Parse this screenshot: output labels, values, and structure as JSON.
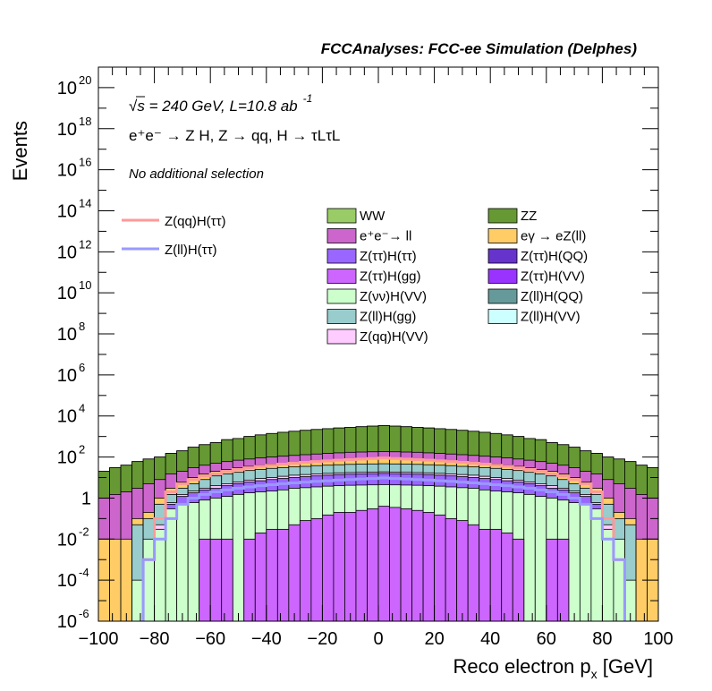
{
  "chart_data": {
    "type": "bar",
    "title": "FCCAnalyses: FCC-ee Simulation (Delphes)",
    "annotations": {
      "energy_sqrt": "s",
      "energy_rest": " = 240 GeV, L=10.8 ab",
      "energy_exp": "-1",
      "process": "e⁺e⁻ → Z H, Z → qq, H → τLτL",
      "selection": "No additional selection"
    },
    "xlabel": "Reco electron p",
    "xlabel_sub": "x",
    "xlabel_unit": " [GeV]",
    "ylabel": "Events",
    "xlim": [
      -100,
      100
    ],
    "ylim": [
      1e-06,
      1e+21
    ],
    "ylog": true,
    "xticks": [
      -100,
      -80,
      -60,
      -40,
      -20,
      0,
      20,
      40,
      60,
      80,
      100
    ],
    "yticks": [
      {
        "label": "10",
        "exp": "-6",
        "value": 1e-06
      },
      {
        "label": "10",
        "exp": "-4",
        "value": 0.0001
      },
      {
        "label": "10",
        "exp": "-2",
        "value": 0.01
      },
      {
        "label": "1",
        "exp": "",
        "value": 1
      },
      {
        "label": "10",
        "exp": "2",
        "value": 100.0
      },
      {
        "label": "10",
        "exp": "4",
        "value": 10000.0
      },
      {
        "label": "10",
        "exp": "6",
        "value": 1000000.0
      },
      {
        "label": "10",
        "exp": "8",
        "value": 100000000.0
      },
      {
        "label": "10",
        "exp": "10",
        "value": 10000000000.0
      },
      {
        "label": "10",
        "exp": "12",
        "value": 1000000000000.0
      },
      {
        "label": "10",
        "exp": "14",
        "value": 100000000000000.0
      },
      {
        "label": "10",
        "exp": "16",
        "value": 1e+16
      },
      {
        "label": "10",
        "exp": "18",
        "value": 1e+18
      },
      {
        "label": "10",
        "exp": "20",
        "value": 1e+20
      }
    ],
    "grid": false,
    "legend_position": "top-right",
    "signal_legend": [
      {
        "name": "Z(qq)H(ττ)",
        "color": "#ff9999"
      },
      {
        "name": "Z(ll)H(ττ)",
        "color": "#9999ff"
      }
    ],
    "stack_legend": [
      {
        "name": "WW",
        "color": "#99cc66"
      },
      {
        "name": "ZZ",
        "color": "#669933"
      },
      {
        "name": "e⁺e⁻→ ll",
        "color": "#cc66cc"
      },
      {
        "name": "eγ → eZ(ll)",
        "color": "#ffcc66"
      },
      {
        "name": "Z(ττ)H(ττ)",
        "color": "#9966ff"
      },
      {
        "name": "Z(ττ)H(QQ)",
        "color": "#6633cc"
      },
      {
        "name": "Z(ττ)H(gg)",
        "color": "#cc66ff"
      },
      {
        "name": "Z(ττ)H(VV)",
        "color": "#9933ff"
      },
      {
        "name": "Z(νν)H(VV)",
        "color": "#ccffcc"
      },
      {
        "name": "Z(ll)H(QQ)",
        "color": "#669999"
      },
      {
        "name": "Z(ll)H(gg)",
        "color": "#99cccc"
      },
      {
        "name": "Z(ll)H(VV)",
        "color": "#ccffff"
      },
      {
        "name": "Z(qq)H(VV)",
        "color": "#ffccff"
      }
    ],
    "bin_edges": [
      -100,
      -96,
      -92,
      -88,
      -84,
      -80,
      -76,
      -72,
      -68,
      -64,
      -60,
      -56,
      -52,
      -48,
      -44,
      -40,
      -36,
      -32,
      -28,
      -24,
      -20,
      -16,
      -12,
      -8,
      -4,
      0,
      4,
      8,
      12,
      16,
      20,
      24,
      28,
      32,
      36,
      40,
      44,
      48,
      52,
      56,
      60,
      64,
      68,
      72,
      76,
      80,
      84,
      88,
      92,
      96,
      100
    ],
    "stack_levels": {
      "order": [
        "Z(ττ)H(gg)",
        "Z(νν)H(VV)",
        "Z(ττ)H(ττ)",
        "Z(qq)H(VV)",
        "Z(ll)H(gg)",
        "eγ → eZ(ll)",
        "e⁺e⁻→ ll",
        "ZZ",
        "WW"
      ],
      "cumulative": [
        {
          "name": "Z(ττ)H(gg)",
          "values": [
            null,
            null,
            null,
            null,
            null,
            null,
            null,
            null,
            null,
            0.01,
            0.01,
            0.01,
            null,
            0.01,
            0.02,
            0.03,
            0.03,
            0.05,
            0.08,
            0.1,
            0.15,
            0.2,
            0.2,
            0.25,
            0.3,
            0.4,
            0.35,
            0.3,
            0.25,
            0.2,
            0.15,
            0.1,
            0.08,
            0.05,
            0.03,
            0.03,
            0.02,
            0.01,
            null,
            null,
            0.01,
            0.01,
            null,
            null,
            null,
            null,
            null,
            null,
            null,
            null
          ]
        },
        {
          "name": "Z(νν)H(VV)",
          "values": [
            null,
            null,
            null,
            0.0001,
            0.01,
            0.03,
            0.3,
            0.5,
            0.6,
            0.8,
            1,
            1.2,
            1.5,
            1.8,
            2,
            2.2,
            2.5,
            3,
            3.2,
            3.5,
            3.8,
            4,
            4.2,
            4.3,
            4.4,
            4.5,
            4.4,
            4.3,
            4.2,
            4,
            3.8,
            3.5,
            3.2,
            3,
            2.5,
            2.2,
            2,
            1.8,
            1.5,
            1.2,
            1,
            0.8,
            0.6,
            0.5,
            0.3,
            0.03,
            0.01,
            0.0001,
            null,
            null
          ]
        },
        {
          "name": "Z(ττ)H(ττ)",
          "values": [
            null,
            null,
            null,
            null,
            null,
            0.03,
            0.5,
            1.2,
            1.8,
            2.5,
            3,
            4,
            5,
            6,
            7,
            8,
            9,
            10,
            11,
            12,
            13,
            14,
            14.5,
            15,
            15.5,
            16,
            15.5,
            15,
            14.5,
            14,
            13,
            12,
            11,
            10,
            9,
            8,
            7,
            6,
            5,
            4,
            3,
            2.5,
            1.8,
            1.2,
            0.5,
            0.03,
            null,
            null,
            null,
            null
          ]
        },
        {
          "name": "Z(qq)H(VV)",
          "values": [
            null,
            null,
            null,
            null,
            null,
            0.05,
            0.6,
            1.5,
            2.2,
            3,
            4,
            5,
            6,
            7.5,
            9,
            10,
            11.5,
            13,
            14,
            15,
            16,
            17,
            17.5,
            18,
            18.5,
            19,
            18.5,
            18,
            17.5,
            17,
            16,
            15,
            14,
            13,
            11.5,
            10,
            9,
            7.5,
            6,
            5,
            4,
            3,
            2.2,
            1.5,
            0.6,
            0.05,
            null,
            null,
            null,
            null
          ]
        },
        {
          "name": "Z(ll)H(gg)",
          "values": [
            null,
            null,
            null,
            0.05,
            0.1,
            0.5,
            1.5,
            3,
            5,
            8,
            12,
            15,
            18,
            22,
            25,
            28,
            30,
            33,
            35,
            38,
            40,
            42,
            44,
            45,
            46,
            47,
            46,
            45,
            44,
            42,
            40,
            38,
            35,
            33,
            30,
            28,
            25,
            22,
            18,
            15,
            12,
            8,
            5,
            3,
            1.5,
            0.5,
            0.1,
            0.05,
            null,
            null
          ]
        },
        {
          "name": "eγ → eZ(ll)",
          "values": [
            0.01,
            0.01,
            0.01,
            0.1,
            0.2,
            1,
            3,
            6,
            10,
            15,
            20,
            25,
            30,
            35,
            40,
            45,
            50,
            55,
            60,
            65,
            70,
            75,
            80,
            85,
            90,
            95,
            90,
            85,
            80,
            75,
            70,
            65,
            60,
            55,
            50,
            45,
            40,
            35,
            30,
            25,
            20,
            15,
            10,
            6,
            3,
            1,
            0.2,
            0.1,
            0.01,
            0.01
          ]
        },
        {
          "name": "e⁺e⁻→ ll",
          "values": [
            1,
            1.5,
            2,
            3,
            5,
            8,
            15,
            20,
            30,
            40,
            50,
            60,
            70,
            80,
            90,
            100,
            110,
            120,
            130,
            140,
            150,
            160,
            170,
            175,
            180,
            185,
            180,
            175,
            170,
            160,
            150,
            140,
            130,
            120,
            110,
            100,
            90,
            80,
            70,
            60,
            50,
            40,
            30,
            20,
            15,
            8,
            5,
            3,
            1.5,
            1
          ]
        },
        {
          "name": "ZZ",
          "values": [
            20,
            30,
            40,
            60,
            80,
            100,
            150,
            200,
            300,
            400,
            500,
            700,
            800,
            1000,
            1200,
            1400,
            1600,
            1800,
            2000,
            2200,
            2400,
            2600,
            2800,
            3000,
            3200,
            3400,
            3200,
            3000,
            2800,
            2600,
            2400,
            2200,
            2000,
            1800,
            1600,
            1400,
            1200,
            1000,
            800,
            700,
            500,
            400,
            300,
            200,
            150,
            100,
            80,
            60,
            40,
            30
          ]
        },
        {
          "name": "WW",
          "values": [
            20,
            30,
            40,
            60,
            80,
            100,
            150,
            200,
            300,
            400,
            500,
            700,
            800,
            1000,
            1200,
            1400,
            1600,
            1800,
            2000,
            2200,
            2400,
            2600,
            2800,
            3000,
            3200,
            3400,
            3200,
            3000,
            2800,
            2600,
            2400,
            2200,
            2000,
            1800,
            1600,
            1400,
            1200,
            1000,
            800,
            700,
            500,
            400,
            300,
            200,
            150,
            100,
            80,
            60,
            40,
            30
          ]
        }
      ]
    },
    "signal_series": [
      {
        "name": "Z(qq)H(ττ)",
        "color": "#ff9999",
        "values": [
          null,
          null,
          null,
          null,
          0.001,
          0.1,
          2,
          5,
          8,
          12,
          15,
          20,
          25,
          30,
          35,
          40,
          45,
          50,
          55,
          60,
          65,
          70,
          75,
          80,
          85,
          90,
          85,
          80,
          75,
          70,
          65,
          60,
          55,
          50,
          45,
          40,
          35,
          30,
          25,
          20,
          15,
          12,
          8,
          5,
          2,
          0.1,
          0.001,
          null,
          null,
          null
        ]
      },
      {
        "name": "Z(ll)H(ττ)",
        "color": "#9999ff",
        "values": [
          null,
          null,
          null,
          null,
          0.001,
          0.01,
          0.1,
          0.5,
          1,
          1.5,
          2,
          2.5,
          3,
          3.5,
          4,
          4.5,
          5,
          5.5,
          6,
          6.5,
          7,
          7.5,
          8,
          8.5,
          9,
          9.5,
          9,
          8.5,
          8,
          7.5,
          7,
          6.5,
          6,
          5.5,
          5,
          4.5,
          4,
          3.5,
          3,
          2.5,
          2,
          1.5,
          1,
          0.5,
          0.1,
          0.01,
          0.001,
          null,
          null,
          null
        ]
      }
    ]
  }
}
